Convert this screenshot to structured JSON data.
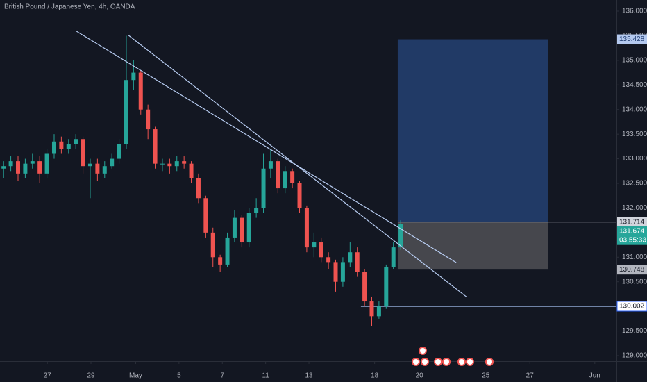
{
  "chart_data": {
    "type": "candlestick",
    "title": "British Pound / Japanese Yen, 4h, OANDA",
    "up_color": "#26a69a",
    "down_color": "#ef5350",
    "grid": false,
    "xlim": [
      -0.5,
      84.9
    ],
    "ylim": [
      128.887,
      136.226
    ],
    "xticks": [
      {
        "value": 6.06,
        "label": "27"
      },
      {
        "value": 12.1,
        "label": "29"
      },
      {
        "value": 18.3,
        "label": "May"
      },
      {
        "value": 24.3,
        "label": "5"
      },
      {
        "value": 30.3,
        "label": "7"
      },
      {
        "value": 36.3,
        "label": "11"
      },
      {
        "value": 42.3,
        "label": "13"
      },
      {
        "value": 51.4,
        "label": "18"
      },
      {
        "value": 57.6,
        "label": "20"
      },
      {
        "value": 66.8,
        "label": "25"
      },
      {
        "value": 72.9,
        "label": "27"
      },
      {
        "value": 81.9,
        "label": "Jun"
      }
    ],
    "yticks": [
      {
        "value": 129,
        "label": "129.000"
      },
      {
        "value": 129.5,
        "label": "129.500"
      },
      {
        "value": 130,
        "label": "130.000"
      },
      {
        "value": 130.5,
        "label": "130.500"
      },
      {
        "value": 131,
        "label": "131.000"
      },
      {
        "value": 131.5,
        "label": "131.500"
      },
      {
        "value": 132,
        "label": "132.000"
      },
      {
        "value": 132.5,
        "label": "132.500"
      },
      {
        "value": 133,
        "label": "133.000"
      },
      {
        "value": 133.5,
        "label": "133.500"
      },
      {
        "value": 134,
        "label": "134.000"
      },
      {
        "value": 134.5,
        "label": "134.500"
      },
      {
        "value": 135,
        "label": "135.000"
      },
      {
        "value": 135.5,
        "label": "135.500"
      },
      {
        "value": 136,
        "label": "136.000"
      }
    ],
    "open": [
      132.8,
      132.85,
      132.95,
      132.7,
      132.9,
      132.95,
      132.7,
      133.1,
      133.35,
      133.2,
      133.3,
      133.4,
      132.85,
      132.9,
      132.7,
      132.85,
      133.0,
      133.3,
      134.6,
      134.75,
      134.0,
      133.6,
      132.9,
      132.9,
      132.85,
      132.95,
      132.9,
      132.6,
      132.2,
      131.5,
      131.0,
      130.85,
      131.4,
      131.8,
      131.3,
      131.9,
      132.0,
      132.8,
      132.95,
      132.4,
      132.75,
      132.5,
      132.0,
      131.2,
      131.3,
      131.0,
      130.9,
      130.5,
      130.9,
      131.1,
      130.7,
      130.1,
      129.8,
      130.0,
      130.8,
      131.2
    ],
    "high": [
      132.95,
      133.05,
      133.05,
      133.0,
      133.1,
      133.05,
      133.2,
      133.5,
      133.45,
      133.4,
      133.5,
      133.45,
      133.0,
      133.0,
      132.95,
      133.1,
      133.4,
      135.5,
      135.0,
      134.8,
      134.1,
      133.65,
      133.0,
      133.0,
      133.05,
      133.05,
      132.95,
      132.7,
      132.25,
      131.6,
      131.05,
      131.5,
      131.95,
      131.85,
      132.0,
      132.2,
      133.1,
      133.2,
      133.0,
      132.85,
      132.8,
      132.55,
      132.05,
      131.5,
      131.4,
      131.1,
      130.95,
      131.0,
      131.3,
      131.2,
      130.75,
      130.2,
      130.1,
      130.85,
      131.3,
      131.75
    ],
    "low": [
      132.6,
      132.75,
      132.55,
      132.6,
      132.8,
      132.5,
      132.6,
      133.0,
      133.1,
      133.1,
      133.2,
      132.7,
      132.2,
      132.55,
      132.6,
      132.8,
      132.9,
      133.2,
      134.4,
      133.9,
      133.4,
      132.8,
      132.75,
      132.7,
      132.75,
      132.8,
      132.5,
      132.1,
      131.4,
      130.8,
      130.7,
      130.8,
      131.3,
      131.2,
      131.2,
      131.8,
      131.9,
      132.6,
      132.3,
      132.3,
      132.4,
      131.9,
      131.1,
      131.0,
      130.9,
      130.75,
      130.3,
      130.4,
      130.8,
      130.6,
      130.0,
      129.6,
      129.75,
      129.95,
      130.75,
      131.15
    ],
    "close": [
      132.85,
      132.95,
      132.7,
      132.9,
      132.95,
      132.7,
      133.1,
      133.35,
      133.2,
      133.3,
      133.4,
      132.85,
      132.9,
      132.7,
      132.85,
      133.0,
      133.3,
      134.6,
      134.75,
      134.0,
      133.6,
      132.9,
      132.9,
      132.85,
      132.95,
      132.9,
      132.6,
      132.2,
      131.5,
      131.0,
      130.85,
      131.4,
      131.8,
      131.3,
      131.9,
      132.0,
      132.8,
      132.95,
      132.4,
      132.75,
      132.5,
      132.0,
      131.2,
      131.3,
      131.0,
      130.9,
      130.5,
      130.9,
      131.1,
      130.7,
      130.1,
      129.8,
      130.0,
      130.8,
      131.2,
      131.674
    ],
    "trend_lines": [
      {
        "x": [
          10.1,
          62.7
        ],
        "y": [
          135.591,
          130.891
        ]
      },
      {
        "x": [
          17.2,
          64.2
        ],
        "y": [
          135.52,
          130.186
        ]
      }
    ],
    "position": {
      "x": [
        54.6,
        75.4
      ],
      "target": {
        "value": 135.428,
        "label": "135.428"
      },
      "entry": {
        "value": 131.714,
        "label": "131.714"
      },
      "stop": {
        "value": 130.748,
        "label": "130.748"
      }
    },
    "last_price": {
      "value": 131.674,
      "label": "131.674"
    },
    "countdown": "03:55:33",
    "horizontal_line": {
      "x_start": 49.5,
      "value": 130.002,
      "label": "130.002"
    }
  }
}
